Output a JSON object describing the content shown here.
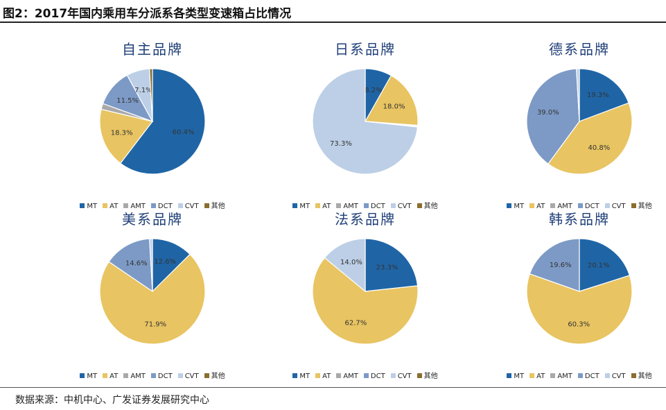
{
  "figure": {
    "title": "图2：2017年国内乘用车分派系各类型变速箱占比情况",
    "source": "数据来源：中机中心、广发证券发展研究中心"
  },
  "colors": {
    "MT": "#1f65a6",
    "AT": "#e8c462",
    "AMT": "#a9a9a9",
    "DCT": "#7d9ac6",
    "CVT": "#bccfe6",
    "其他": "#8a6d2f"
  },
  "legend": [
    "MT",
    "AT",
    "AMT",
    "DCT",
    "CVT",
    "其他"
  ],
  "chart_data": [
    {
      "type": "pie",
      "title": "自主品牌",
      "categories": [
        "MT",
        "AT",
        "AMT",
        "DCT",
        "CVT",
        "其他"
      ],
      "values": [
        60.4,
        18.3,
        1.8,
        11.5,
        7.1,
        0.9
      ],
      "labels": [
        "60.4%",
        "18.3%",
        "",
        "11.5%",
        "7.1%",
        ""
      ]
    },
    {
      "type": "pie",
      "title": "日系品牌",
      "categories": [
        "MT",
        "AT",
        "AMT",
        "DCT",
        "CVT",
        "其他"
      ],
      "values": [
        8.2,
        18.0,
        0.3,
        0.2,
        73.3,
        0.0
      ],
      "labels": [
        "8.2%",
        "18.0%",
        "",
        "",
        "73.3%",
        ""
      ]
    },
    {
      "type": "pie",
      "title": "德系品牌",
      "categories": [
        "MT",
        "AT",
        "AMT",
        "DCT",
        "CVT",
        "其他"
      ],
      "values": [
        19.3,
        40.8,
        0.0,
        39.0,
        0.9,
        0.0
      ],
      "labels": [
        "19.3%",
        "40.8%",
        "",
        "39.0%",
        "",
        ""
      ]
    },
    {
      "type": "pie",
      "title": "美系品牌",
      "categories": [
        "MT",
        "AT",
        "AMT",
        "DCT",
        "CVT",
        "其他"
      ],
      "values": [
        12.6,
        71.9,
        0.0,
        14.6,
        0.9,
        0.0
      ],
      "labels": [
        "12.6%",
        "71.9%",
        "",
        "14.6%",
        "",
        ""
      ]
    },
    {
      "type": "pie",
      "title": "法系品牌",
      "categories": [
        "MT",
        "AT",
        "AMT",
        "DCT",
        "CVT",
        "其他"
      ],
      "values": [
        23.3,
        62.7,
        0.0,
        0.0,
        14.0,
        0.0
      ],
      "labels": [
        "23.3%",
        "62.7%",
        "",
        "",
        "14.0%",
        ""
      ]
    },
    {
      "type": "pie",
      "title": "韩系品牌",
      "categories": [
        "MT",
        "AT",
        "AMT",
        "DCT",
        "CVT",
        "其他"
      ],
      "values": [
        20.1,
        60.3,
        0.0,
        19.6,
        0.0,
        0.0
      ],
      "labels": [
        "20.1%",
        "60.3%",
        "",
        "19.6%",
        "",
        ""
      ]
    }
  ]
}
